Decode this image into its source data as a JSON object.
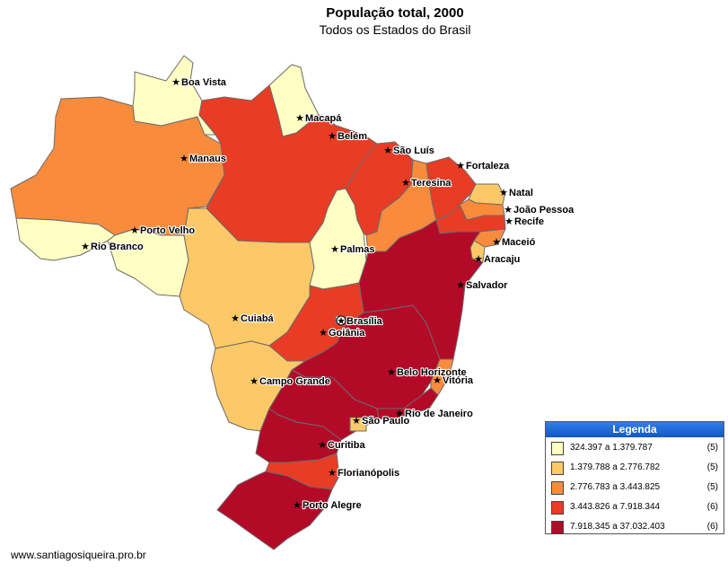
{
  "title": "População total, 2000",
  "subtitle": "Todos os Estados do Brasil",
  "footer": "www.santiagosiqueira.pro.br",
  "legend": {
    "title": "Legenda",
    "classes": [
      {
        "range": "324.397 a 1.379.787",
        "count": "(5)",
        "color": "#ffffc4"
      },
      {
        "range": "1.379.788 a 2.776.782",
        "count": "(5)",
        "color": "#fdc867"
      },
      {
        "range": "2.776.783 a 3.443.825",
        "count": "(5)",
        "color": "#f98b3d"
      },
      {
        "range": "3.443.826 a 7.918.344",
        "count": "(6)",
        "color": "#e83c25"
      },
      {
        "range": "7.918.345 a 37.032.403",
        "count": "(6)",
        "color": "#b30a28"
      }
    ]
  },
  "capitals": [
    {
      "name": "Boa Vista",
      "icon": "star"
    },
    {
      "name": "Macapá",
      "icon": "star"
    },
    {
      "name": "Belém",
      "icon": "star"
    },
    {
      "name": "Manaus",
      "icon": "star"
    },
    {
      "name": "São Luís",
      "icon": "star"
    },
    {
      "name": "Fortaleza",
      "icon": "star"
    },
    {
      "name": "Teresina",
      "icon": "star"
    },
    {
      "name": "Natal",
      "icon": "star"
    },
    {
      "name": "João Pessoa",
      "icon": "star"
    },
    {
      "name": "Recife",
      "icon": "star"
    },
    {
      "name": "Porto Velho",
      "icon": "star"
    },
    {
      "name": "Rio Branco",
      "icon": "star"
    },
    {
      "name": "Palmas",
      "icon": "star"
    },
    {
      "name": "Maceió",
      "icon": "star"
    },
    {
      "name": "Aracaju",
      "icon": "star"
    },
    {
      "name": "Salvador",
      "icon": "star"
    },
    {
      "name": "Cuiabá",
      "icon": "star"
    },
    {
      "name": "Brasília",
      "icon": "circled-star"
    },
    {
      "name": "Goiânia",
      "icon": "star"
    },
    {
      "name": "Belo Horizonte",
      "icon": "star"
    },
    {
      "name": "Vitória",
      "icon": "star"
    },
    {
      "name": "Campo Grande",
      "icon": "star"
    },
    {
      "name": "Rio de Janeiro",
      "icon": "star"
    },
    {
      "name": "São Paulo",
      "icon": "star"
    },
    {
      "name": "Curitiba",
      "icon": "star"
    },
    {
      "name": "Florianópolis",
      "icon": "star"
    },
    {
      "name": "Porto Alegre",
      "icon": "star"
    }
  ]
}
